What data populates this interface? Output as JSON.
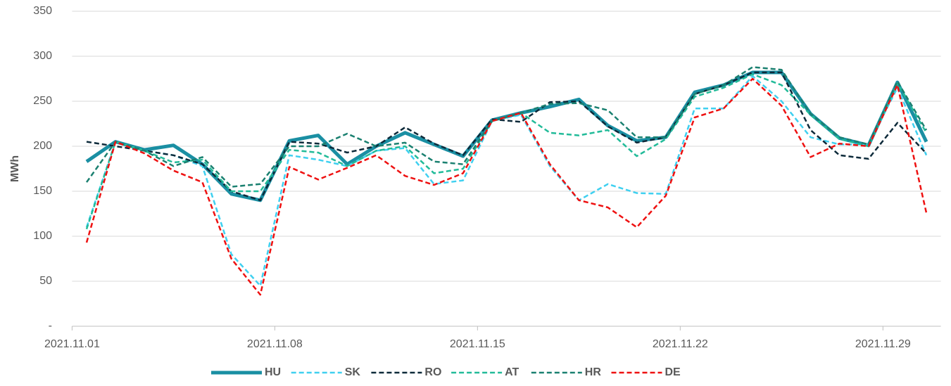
{
  "chart_data": {
    "type": "line",
    "y_label": "MWh",
    "x": [
      "2021.11.01",
      "2021.11.02",
      "2021.11.03",
      "2021.11.04",
      "2021.11.05",
      "2021.11.06",
      "2021.11.07",
      "2021.11.08",
      "2021.11.09",
      "2021.11.10",
      "2021.11.11",
      "2021.11.12",
      "2021.11.13",
      "2021.11.14",
      "2021.11.15",
      "2021.11.16",
      "2021.11.17",
      "2021.11.18",
      "2021.11.19",
      "2021.11.20",
      "2021.11.21",
      "2021.11.22",
      "2021.11.23",
      "2021.11.24",
      "2021.11.25",
      "2021.11.26",
      "2021.11.27",
      "2021.11.28",
      "2021.11.29",
      "2021.11.30"
    ],
    "xticks": [
      "2021.11.01",
      "2021.11.08",
      "2021.11.15",
      "2021.11.22",
      "2021.11.29"
    ],
    "ylim": [
      0,
      350
    ],
    "yticks": [
      {
        "value": 0,
        "label": "-"
      },
      50,
      100,
      150,
      200,
      250,
      300,
      350
    ],
    "grid": true,
    "legend": "bottom",
    "series": [
      {
        "name": "HU",
        "color": "#1a8fa3",
        "style": "solid",
        "values": [
          183,
          205,
          196,
          201,
          180,
          147,
          140,
          206,
          212,
          180,
          200,
          215,
          202,
          189,
          229,
          237,
          244,
          252,
          223,
          206,
          210,
          260,
          268,
          282,
          282,
          236,
          209,
          201,
          271,
          205
        ]
      },
      {
        "name": "SK",
        "color": "#3fd0f0",
        "style": "dashed",
        "values": [
          110,
          205,
          195,
          190,
          178,
          80,
          45,
          190,
          185,
          178,
          195,
          198,
          158,
          162,
          228,
          235,
          178,
          140,
          158,
          148,
          147,
          242,
          242,
          278,
          250,
          210,
          202,
          202,
          265,
          190
        ]
      },
      {
        "name": "RO",
        "color": "#0d2a3a",
        "style": "dashed",
        "values": [
          205,
          200,
          195,
          190,
          180,
          150,
          140,
          205,
          203,
          193,
          200,
          221,
          203,
          190,
          230,
          227,
          249,
          250,
          222,
          204,
          210,
          258,
          268,
          282,
          282,
          218,
          190,
          186,
          226,
          192
        ]
      },
      {
        "name": "AT",
        "color": "#22bb99",
        "style": "dashed",
        "values": [
          108,
          205,
          195,
          182,
          185,
          150,
          150,
          196,
          193,
          178,
          195,
          200,
          170,
          175,
          228,
          237,
          215,
          212,
          218,
          189,
          208,
          255,
          265,
          280,
          268,
          235,
          208,
          200,
          270,
          215
        ]
      },
      {
        "name": "HR",
        "color": "#1a8070",
        "style": "dashed",
        "values": [
          160,
          205,
          195,
          178,
          188,
          155,
          158,
          200,
          200,
          214,
          200,
          204,
          183,
          180,
          228,
          237,
          247,
          248,
          240,
          210,
          210,
          258,
          268,
          288,
          285,
          236,
          210,
          202,
          272,
          218
        ]
      },
      {
        "name": "DE",
        "color": "#ee1111",
        "style": "dashed",
        "values": [
          93,
          205,
          192,
          173,
          160,
          75,
          35,
          177,
          163,
          176,
          190,
          167,
          157,
          170,
          228,
          237,
          180,
          140,
          132,
          110,
          145,
          232,
          242,
          275,
          245,
          188,
          203,
          200,
          268,
          126
        ]
      }
    ]
  }
}
